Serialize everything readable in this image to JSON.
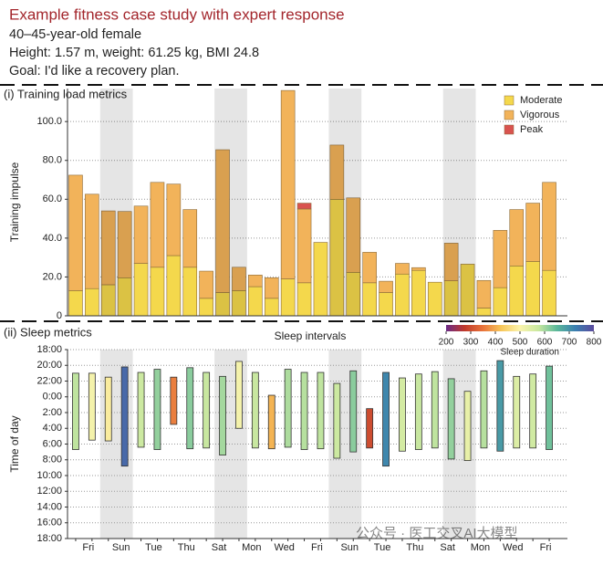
{
  "header": {
    "title": "Example fitness case study with expert response",
    "lines": [
      "40–45-year-old female",
      "Height: 1.57 m, weight: 61.25 kg, BMI 24.8",
      "Goal: I'd like a recovery plan."
    ]
  },
  "watermark": "公众号 · 医工交叉AI大模型",
  "chart_data": [
    {
      "type": "stacked_bar",
      "title": "(i) Training load metrics",
      "ylabel": "Training impulse",
      "xlabel": "Sleep intervals",
      "ylim": [
        0,
        117
      ],
      "yticks": [
        0,
        {
          "value": 20,
          "label": "20.0"
        },
        {
          "value": 40,
          "label": "40.0"
        },
        {
          "value": 60,
          "label": "60.0"
        },
        {
          "value": 80,
          "label": "80.0"
        },
        {
          "value": 100,
          "label": "100.0"
        }
      ],
      "grid": true,
      "legend": "upper right",
      "series": [
        {
          "name": "Moderate",
          "color": "#f4d84c",
          "values": [
            13,
            14,
            16,
            19.6,
            27,
            25,
            31,
            25,
            9,
            12,
            13,
            15,
            9,
            19,
            17,
            37.8,
            60,
            22.4,
            17,
            12,
            21.5,
            23.4,
            17.3,
            18,
            26.6,
            4,
            14.5,
            25.7,
            28,
            23.4
          ]
        },
        {
          "name": "Vigorous",
          "color": "#f2b35a",
          "values": [
            59.4,
            48.6,
            38,
            34.1,
            29.5,
            43.7,
            36.8,
            29.7,
            14,
            73.5,
            12,
            6,
            10.6,
            97,
            38,
            0,
            27.9,
            38.3,
            15.7,
            5.8,
            5.5,
            1.4,
            0,
            19.4,
            0,
            14.2,
            29.5,
            29,
            30,
            45.3
          ]
        },
        {
          "name": "Peak",
          "color": "#d9534f",
          "values": [
            0,
            0,
            0,
            0,
            0,
            0,
            0,
            0,
            0,
            0,
            0,
            0,
            0,
            0,
            3,
            0,
            0,
            0,
            0,
            0,
            0,
            0,
            0,
            0,
            0,
            0,
            0,
            0,
            0,
            0
          ]
        }
      ]
    },
    {
      "type": "range_bar",
      "title": "(ii) Sleep metrics",
      "ylabel": "Time of day",
      "ylim": [
        42,
        18
      ],
      "yticks": [
        {
          "value": 18,
          "label": "18:00"
        },
        {
          "value": 20,
          "label": "20:00"
        },
        {
          "value": 22,
          "label": "22:00"
        },
        {
          "value": 24,
          "label": "0:00"
        },
        {
          "value": 26,
          "label": "2:00"
        },
        {
          "value": 28,
          "label": "4:00"
        },
        {
          "value": 30,
          "label": "6:00"
        },
        {
          "value": 32,
          "label": "8:00"
        },
        {
          "value": 34,
          "label": "10:00"
        },
        {
          "value": 36,
          "label": "12:00"
        },
        {
          "value": 38,
          "label": "14:00"
        },
        {
          "value": 40,
          "label": "16:00"
        },
        {
          "value": 42,
          "label": "18:00"
        }
      ],
      "grid": true,
      "categories": [
        null,
        "Fri",
        null,
        "Sun",
        null,
        "Tue",
        null,
        "Thu",
        null,
        "Sat",
        null,
        "Mon",
        null,
        "Wed",
        null,
        "Fri",
        null,
        "Sun",
        null,
        "Tue",
        null,
        "Thu",
        null,
        "Sat",
        null,
        "Mon",
        null,
        "Wed",
        null,
        "Fri"
      ],
      "start": [
        21.0,
        21.0,
        21.5,
        20.2,
        20.9,
        20.5,
        21.5,
        20.3,
        20.9,
        21.4,
        19.5,
        20.9,
        23.8,
        20.5,
        20.9,
        20.9,
        22.3,
        20.7,
        25.5,
        20.9,
        21.6,
        21.1,
        20.8,
        21.7,
        23.3,
        20.7,
        19.4,
        21.4,
        21.1,
        20.1
      ],
      "end": [
        30.7,
        29.5,
        29.6,
        32.8,
        30.4,
        30.7,
        27.5,
        30.6,
        30.5,
        31.4,
        28.0,
        30.5,
        30.6,
        30.4,
        30.7,
        30.6,
        31.8,
        31.0,
        30.5,
        32.8,
        30.9,
        30.7,
        30.5,
        31.9,
        32.1,
        30.5,
        30.9,
        30.5,
        30.5,
        30.7
      ],
      "colorbar": {
        "label": "Sleep duration",
        "lim": [
          200,
          800
        ],
        "ticks": [
          200,
          300,
          400,
          500,
          600,
          700,
          800
        ],
        "colors": [
          "#6a2a86",
          "#c0392b",
          "#e8743b",
          "#f7c75a",
          "#fbf4ad",
          "#c9e8a0",
          "#5bb89a",
          "#3a7fb0",
          "#5b4a9e"
        ]
      }
    }
  ]
}
